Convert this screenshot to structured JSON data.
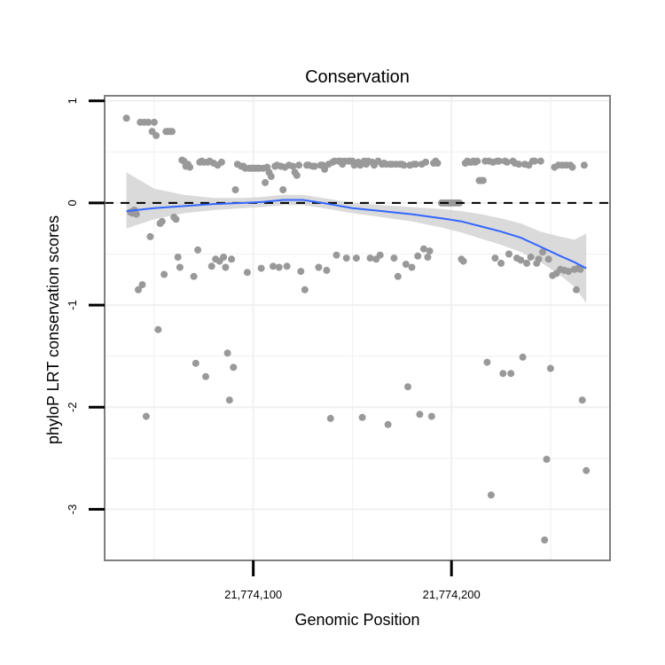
{
  "chart_data": {
    "type": "scatter",
    "title": "Conservation",
    "xlabel": "Genomic Position",
    "ylabel": "phyloP LRT conservation scores",
    "xlim": [
      21774025,
      21774280
    ],
    "ylim": [
      -3.5,
      1.05
    ],
    "x_ticks": [
      21774100,
      21774200
    ],
    "x_tick_labels": [
      "21,774,100",
      "21,774,200"
    ],
    "y_ticks": [
      1,
      0,
      -1,
      -2,
      -3
    ],
    "y_tick_labels": [
      "1",
      "0",
      "-1",
      "-2",
      "-3"
    ],
    "grid": true,
    "reference_line_y": 0,
    "colors": {
      "points": "#999999",
      "smooth": "#3366ff",
      "band": "#d3d3d3",
      "reference": "#000000",
      "grid": "#f0f0f0",
      "border": "#7f7f7f"
    },
    "series": [
      {
        "type": "scatter",
        "points": [
          [
            21774036,
            0.83
          ],
          [
            21774038,
            -0.09
          ],
          [
            21774039,
            -0.1
          ],
          [
            21774040,
            -0.07
          ],
          [
            21774041,
            -0.11
          ],
          [
            21774042,
            -0.85
          ],
          [
            21774043,
            0.79
          ],
          [
            21774044,
            -0.8
          ],
          [
            21774045,
            0.79
          ],
          [
            21774046,
            -2.09
          ],
          [
            21774047,
            0.79
          ],
          [
            21774048,
            -0.33
          ],
          [
            21774049,
            0.7
          ],
          [
            21774050,
            0.79
          ],
          [
            21774051,
            0.66
          ],
          [
            21774052,
            -1.24
          ],
          [
            21774053,
            -0.2
          ],
          [
            21774054,
            -0.18
          ],
          [
            21774055,
            -0.7
          ],
          [
            21774056,
            0.7
          ],
          [
            21774057,
            0.7
          ],
          [
            21774058,
            0.7
          ],
          [
            21774059,
            0.7
          ],
          [
            21774060,
            -0.14
          ],
          [
            21774061,
            -0.16
          ],
          [
            21774062,
            -0.53
          ],
          [
            21774063,
            -0.63
          ],
          [
            21774064,
            0.42
          ],
          [
            21774065,
            0.41
          ],
          [
            21774066,
            0.36
          ],
          [
            21774067,
            0.38
          ],
          [
            21774068,
            0.35
          ],
          [
            21774070,
            -0.72
          ],
          [
            21774071,
            -1.57
          ],
          [
            21774072,
            -0.46
          ],
          [
            21774073,
            0.4
          ],
          [
            21774074,
            0.41
          ],
          [
            21774075,
            0.4
          ],
          [
            21774076,
            -1.7
          ],
          [
            21774077,
            0.4
          ],
          [
            21774078,
            0.41
          ],
          [
            21774079,
            -0.62
          ],
          [
            21774080,
            0.39
          ],
          [
            21774081,
            -0.55
          ],
          [
            21774082,
            0.37
          ],
          [
            21774083,
            -0.57
          ],
          [
            21774084,
            0.4
          ],
          [
            21774085,
            -0.53
          ],
          [
            21774086,
            -0.63
          ],
          [
            21774087,
            -1.47
          ],
          [
            21774088,
            -1.93
          ],
          [
            21774089,
            -0.55
          ],
          [
            21774090,
            -1.61
          ],
          [
            21774091,
            0.13
          ],
          [
            21774092,
            0.38
          ],
          [
            21774094,
            0.36
          ],
          [
            21774095,
            0.36
          ],
          [
            21774096,
            0.34
          ],
          [
            21774097,
            -0.68
          ],
          [
            21774098,
            0.34
          ],
          [
            21774099,
            0.34
          ],
          [
            21774100,
            0.34
          ],
          [
            21774101,
            0.34
          ],
          [
            21774102,
            0.34
          ],
          [
            21774103,
            0.34
          ],
          [
            21774104,
            -0.64
          ],
          [
            21774105,
            0.34
          ],
          [
            21774106,
            0.2
          ],
          [
            21774107,
            0.35
          ],
          [
            21774108,
            0.3
          ],
          [
            21774109,
            0.26
          ],
          [
            21774110,
            -0.62
          ],
          [
            21774111,
            0.36
          ],
          [
            21774112,
            0.37
          ],
          [
            21774113,
            -0.63
          ],
          [
            21774114,
            0.36
          ],
          [
            21774115,
            0.13
          ],
          [
            21774116,
            0.35
          ],
          [
            21774117,
            -0.62
          ],
          [
            21774118,
            0.37
          ],
          [
            21774120,
            0.36
          ],
          [
            21774121,
            0.3
          ],
          [
            21774122,
            0.27
          ],
          [
            21774123,
            0.37
          ],
          [
            21774124,
            -0.67
          ],
          [
            21774126,
            -0.85
          ],
          [
            21774127,
            0.37
          ],
          [
            21774128,
            0.37
          ],
          [
            21774130,
            0.36
          ],
          [
            21774131,
            0.36
          ],
          [
            21774133,
            -0.63
          ],
          [
            21774134,
            0.37
          ],
          [
            21774135,
            0.37
          ],
          [
            21774136,
            0.33
          ],
          [
            21774137,
            -0.66
          ],
          [
            21774138,
            0.38
          ],
          [
            21774139,
            -2.11
          ],
          [
            21774140,
            0.4
          ],
          [
            21774141,
            0.41
          ],
          [
            21774142,
            -0.51
          ],
          [
            21774143,
            0.41
          ],
          [
            21774144,
            0.41
          ],
          [
            21774145,
            0.38
          ],
          [
            21774146,
            0.41
          ],
          [
            21774147,
            -0.54
          ],
          [
            21774148,
            0.41
          ],
          [
            21774149,
            0.41
          ],
          [
            21774150,
            0.41
          ],
          [
            21774151,
            0.37
          ],
          [
            21774152,
            -0.54
          ],
          [
            21774153,
            0.4
          ],
          [
            21774154,
            0.37
          ],
          [
            21774155,
            -2.1
          ],
          [
            21774156,
            0.41
          ],
          [
            21774157,
            0.38
          ],
          [
            21774158,
            0.41
          ],
          [
            21774159,
            -0.54
          ],
          [
            21774160,
            0.4
          ],
          [
            21774161,
            0.37
          ],
          [
            21774162,
            -0.55
          ],
          [
            21774163,
            0.41
          ],
          [
            21774164,
            -0.51
          ],
          [
            21774165,
            0.38
          ],
          [
            21774166,
            0.39
          ],
          [
            21774167,
            0.38
          ],
          [
            21774168,
            -2.17
          ],
          [
            21774169,
            0.38
          ],
          [
            21774170,
            0.38
          ],
          [
            21774171,
            -0.54
          ],
          [
            21774172,
            0.38
          ],
          [
            21774173,
            -0.72
          ],
          [
            21774174,
            0.38
          ],
          [
            21774175,
            0.38
          ],
          [
            21774176,
            0.37
          ],
          [
            21774177,
            -0.6
          ],
          [
            21774178,
            -1.8
          ],
          [
            21774179,
            0.37
          ],
          [
            21774180,
            -0.63
          ],
          [
            21774181,
            0.38
          ],
          [
            21774182,
            0.38
          ],
          [
            21774183,
            -0.52
          ],
          [
            21774184,
            -2.07
          ],
          [
            21774185,
            0.38
          ],
          [
            21774186,
            -0.45
          ],
          [
            21774187,
            0.4
          ],
          [
            21774188,
            -0.53
          ],
          [
            21774189,
            -0.47
          ],
          [
            21774190,
            -2.09
          ],
          [
            21774191,
            0.39
          ],
          [
            21774192,
            0.41
          ],
          [
            21774193,
            0.39
          ],
          [
            21774195,
            0.0
          ],
          [
            21774196,
            0.0
          ],
          [
            21774197,
            0.0
          ],
          [
            21774198,
            0.0
          ],
          [
            21774199,
            0.0
          ],
          [
            21774200,
            0.0
          ],
          [
            21774201,
            0.0
          ],
          [
            21774202,
            0.0
          ],
          [
            21774203,
            0.0
          ],
          [
            21774204,
            0.0
          ],
          [
            21774205,
            -0.55
          ],
          [
            21774206,
            -0.57
          ],
          [
            21774207,
            0.39
          ],
          [
            21774208,
            0.41
          ],
          [
            21774209,
            0.4
          ],
          [
            21774210,
            0.4
          ],
          [
            21774211,
            0.41
          ],
          [
            21774212,
            0.4
          ],
          [
            21774213,
            0.41
          ],
          [
            21774214,
            0.22
          ],
          [
            21774215,
            0.22
          ],
          [
            21774216,
            0.22
          ],
          [
            21774217,
            0.41
          ],
          [
            21774218,
            -1.56
          ],
          [
            21774219,
            0.41
          ],
          [
            21774220,
            -2.86
          ],
          [
            21774221,
            0.4
          ],
          [
            21774222,
            -0.54
          ],
          [
            21774223,
            0.41
          ],
          [
            21774224,
            0.41
          ],
          [
            21774225,
            -0.59
          ],
          [
            21774226,
            -1.67
          ],
          [
            21774227,
            0.41
          ],
          [
            21774228,
            0.4
          ],
          [
            21774229,
            -0.5
          ],
          [
            21774230,
            -1.67
          ],
          [
            21774231,
            0.41
          ],
          [
            21774232,
            0.39
          ],
          [
            21774233,
            -0.54
          ],
          [
            21774234,
            0.38
          ],
          [
            21774235,
            -0.56
          ],
          [
            21774236,
            -1.51
          ],
          [
            21774237,
            0.38
          ],
          [
            21774238,
            -0.59
          ],
          [
            21774239,
            0.37
          ],
          [
            21774240,
            -0.53
          ],
          [
            21774241,
            0.41
          ],
          [
            21774242,
            0.41
          ],
          [
            21774243,
            -0.59
          ],
          [
            21774244,
            -0.55
          ],
          [
            21774245,
            0.41
          ],
          [
            21774246,
            -0.48
          ],
          [
            21774247,
            -3.3
          ],
          [
            21774248,
            -2.51
          ],
          [
            21774249,
            -0.55
          ],
          [
            21774250,
            -1.62
          ],
          [
            21774251,
            -0.71
          ],
          [
            21774252,
            0.35
          ],
          [
            21774253,
            -0.69
          ],
          [
            21774254,
            0.37
          ],
          [
            21774255,
            -0.65
          ],
          [
            21774256,
            0.37
          ],
          [
            21774257,
            -0.66
          ],
          [
            21774258,
            0.37
          ],
          [
            21774259,
            -0.67
          ],
          [
            21774260,
            0.37
          ],
          [
            21774261,
            0.35
          ],
          [
            21774262,
            -0.65
          ],
          [
            21774263,
            -0.85
          ],
          [
            21774264,
            -0.64
          ],
          [
            21774265,
            -0.65
          ],
          [
            21774266,
            -1.93
          ],
          [
            21774267,
            0.37
          ],
          [
            21774268,
            -2.62
          ]
        ]
      },
      {
        "type": "line",
        "smooth": true,
        "x": [
          21774036,
          21774050,
          21774065,
          21774080,
          21774095,
          21774105,
          21774115,
          21774125,
          21774135,
          21774150,
          21774165,
          21774180,
          21774195,
          21774205,
          21774215,
          21774225,
          21774235,
          21774245,
          21774255,
          21774262,
          21774268
        ],
        "y": [
          -0.08,
          -0.05,
          -0.03,
          -0.01,
          0.0,
          0.01,
          0.03,
          0.03,
          0.0,
          -0.05,
          -0.08,
          -0.11,
          -0.15,
          -0.18,
          -0.23,
          -0.28,
          -0.34,
          -0.43,
          -0.52,
          -0.58,
          -0.64
        ],
        "band_lower": [
          -0.25,
          -0.16,
          -0.1,
          -0.07,
          -0.05,
          -0.04,
          -0.02,
          -0.02,
          -0.05,
          -0.1,
          -0.14,
          -0.18,
          -0.24,
          -0.29,
          -0.35,
          -0.41,
          -0.48,
          -0.58,
          -0.71,
          -0.82,
          -0.98
        ],
        "band_upper": [
          0.3,
          0.14,
          0.08,
          0.05,
          0.05,
          0.06,
          0.08,
          0.08,
          0.05,
          0.0,
          -0.02,
          -0.04,
          -0.06,
          -0.08,
          -0.11,
          -0.15,
          -0.2,
          -0.28,
          -0.33,
          -0.36,
          -0.3
        ]
      }
    ]
  }
}
